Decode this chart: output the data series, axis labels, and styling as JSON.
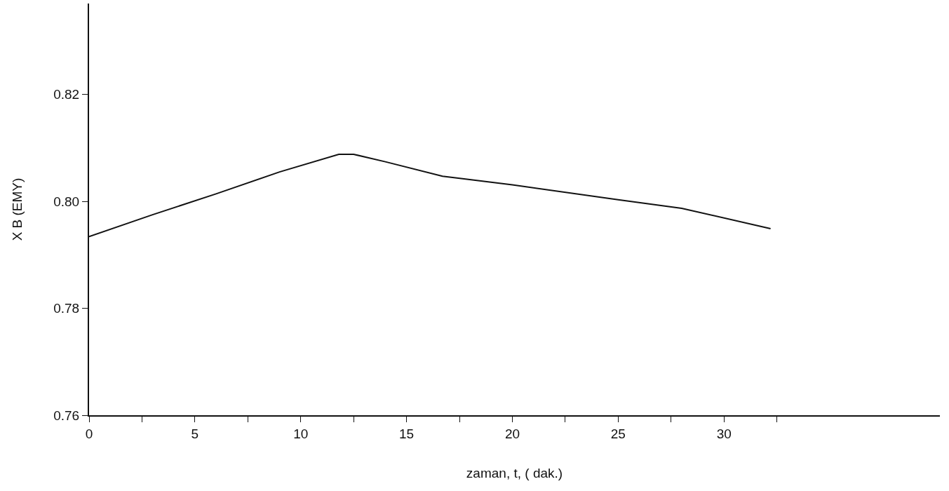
{
  "chart_data": {
    "type": "line",
    "xlabel": "zaman, t, ( dak.)",
    "ylabel": "X B (EMY)",
    "series": [
      {
        "color": "#111111",
        "x": [
          0,
          3,
          6,
          9,
          11.8,
          12.5,
          14,
          16.7,
          20,
          25,
          28,
          32.2
        ],
        "values": [
          0.7934,
          0.7975,
          0.8014,
          0.8055,
          0.8088,
          0.8088,
          0.8074,
          0.8047,
          0.8031,
          0.8003,
          0.7987,
          0.7949
        ]
      }
    ],
    "xlim": [
      0,
      40.2
    ],
    "ylim": [
      0.76,
      0.837
    ],
    "xticks": [
      0,
      {
        "value": 2.5,
        "label": null
      },
      5,
      {
        "value": 7.5,
        "label": null
      },
      10,
      {
        "value": 12.5,
        "label": null
      },
      15,
      {
        "value": 17.5,
        "label": null
      },
      20,
      {
        "value": 22.5,
        "label": null
      },
      25,
      {
        "value": 27.5,
        "label": null
      },
      30,
      {
        "value": 32.5,
        "label": null
      }
    ],
    "yticks": [
      {
        "value": 0.76,
        "label": "0.76"
      },
      {
        "value": 0.78,
        "label": "0.78"
      },
      {
        "value": 0.8,
        "label": "0.80"
      },
      {
        "value": 0.82,
        "label": "0.82"
      }
    ],
    "grid": false,
    "marker": "none",
    "line_style": "solid"
  }
}
